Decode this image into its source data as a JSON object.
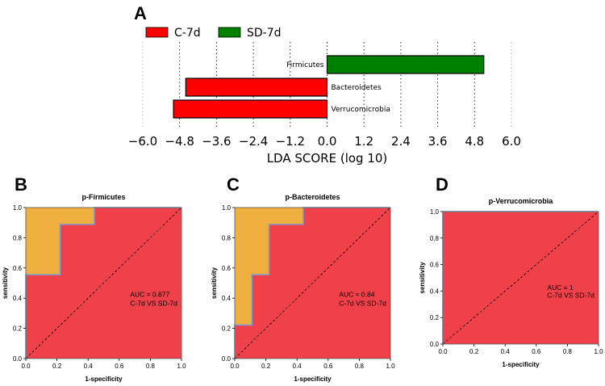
{
  "panels": [
    "A",
    "B",
    "C",
    "D"
  ],
  "chart_data": [
    {
      "panel": "A",
      "type": "bar",
      "orientation": "horizontal",
      "categories": [
        "Firmicutes",
        "Bacteroidetes",
        "Verrucomicrobia"
      ],
      "values": [
        5.1,
        -4.6,
        -5.0
      ],
      "groups": [
        "SD-7d",
        "C-7d",
        "C-7d"
      ],
      "legend": [
        {
          "name": "C-7d",
          "color": "#ff0000"
        },
        {
          "name": "SD-7d",
          "color": "#008000"
        }
      ],
      "xlabel": "LDA SCORE (log 10)",
      "xticks": [
        "−6.0",
        "−4.8",
        "−3.6",
        "−2.4",
        "−1.2",
        "0.0",
        "1.2",
        "2.4",
        "3.6",
        "4.8",
        "6.0"
      ],
      "xlim": [
        -6.0,
        6.0
      ],
      "grid": "vertical dotted"
    },
    {
      "panel": "B",
      "type": "line",
      "title": "p-Firmicutes",
      "xlabel": "1-specificity",
      "ylabel": "sensitivity",
      "ticks": [
        "0.0",
        "0.2",
        "0.4",
        "0.6",
        "0.8",
        "1.0"
      ],
      "xlim": [
        0,
        1
      ],
      "ylim": [
        0,
        1
      ],
      "roc_x": [
        0,
        0,
        0.22,
        0.22,
        0.44,
        0.44,
        1
      ],
      "roc_y": [
        0,
        0.556,
        0.556,
        0.889,
        0.889,
        1,
        1
      ],
      "auc_label": "AUC = 0.877",
      "comparison_label": "C-7d VS SD-7d"
    },
    {
      "panel": "C",
      "type": "line",
      "title": "p-Bacteroidetes",
      "xlabel": "1-specificity",
      "ylabel": "sensitivity",
      "ticks": [
        "0.0",
        "0.2",
        "0.4",
        "0.6",
        "0.8",
        "1.0"
      ],
      "xlim": [
        0,
        1
      ],
      "ylim": [
        0,
        1
      ],
      "roc_x": [
        0,
        0,
        0.11,
        0.11,
        0.22,
        0.22,
        0.44,
        0.44,
        1
      ],
      "roc_y": [
        0,
        0.222,
        0.222,
        0.556,
        0.556,
        0.889,
        0.889,
        1,
        1
      ],
      "auc_label": "AUC = 0.84",
      "comparison_label": "C-7d VS SD-7d"
    },
    {
      "panel": "D",
      "type": "line",
      "title": "p-Verrucomicrobia",
      "xlabel": "1-specificity",
      "ylabel": "sensitivity",
      "ticks": [
        "0.0",
        "0.2",
        "0.4",
        "0.6",
        "0.8",
        "1.0"
      ],
      "xlim": [
        0,
        1
      ],
      "ylim": [
        0,
        1
      ],
      "roc_x": [
        0,
        0,
        1
      ],
      "roc_y": [
        0,
        1,
        1
      ],
      "auc_label": "AUC = 1",
      "comparison_label": "C-7d VS SD-7d"
    }
  ],
  "colors": {
    "c7d": "#ff0000",
    "sd7d": "#008000",
    "roc_fill": "#f0414b",
    "roc_gap": "#f0b040",
    "roc_line": "#7f9fc8"
  }
}
